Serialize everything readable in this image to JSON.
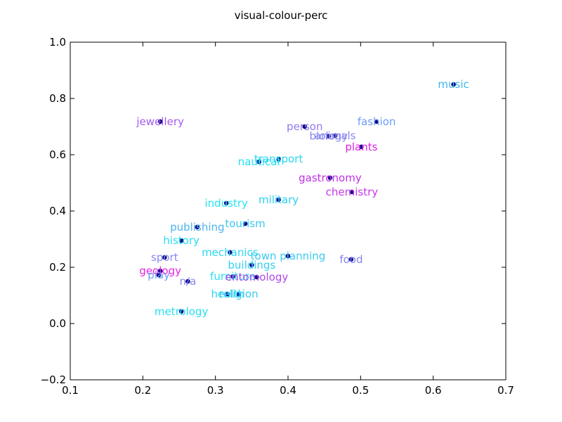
{
  "chart_data": {
    "type": "scatter",
    "title": "visual-colour-perc",
    "xlabel": "",
    "ylabel": "",
    "xlim": [
      0.1,
      0.7
    ],
    "ylim": [
      -0.2,
      1.0
    ],
    "xticks": [
      "0.1",
      "0.2",
      "0.3",
      "0.4",
      "0.5",
      "0.6",
      "0.7"
    ],
    "yticks": [
      "−0.2",
      "0.0",
      "0.2",
      "0.4",
      "0.6",
      "0.8",
      "1.0"
    ],
    "grid": false,
    "marker_color": "#0a0a8a",
    "points": [
      {
        "label": "music",
        "x": 0.628,
        "y": 0.85,
        "color": "#38b8ee"
      },
      {
        "label": "fashion",
        "x": 0.522,
        "y": 0.718,
        "color": "#6c9cf4"
      },
      {
        "label": "jewellery",
        "x": 0.224,
        "y": 0.718,
        "color": "#a35af0"
      },
      {
        "label": "person",
        "x": 0.423,
        "y": 0.7,
        "color": "#9078f0"
      },
      {
        "label": "animals",
        "x": 0.465,
        "y": 0.668,
        "color": "#8888f0"
      },
      {
        "label": "biology",
        "x": 0.456,
        "y": 0.666,
        "color": "#8a86f0"
      },
      {
        "label": "plants",
        "x": 0.501,
        "y": 0.628,
        "color": "#e020e8"
      },
      {
        "label": "transport",
        "x": 0.387,
        "y": 0.585,
        "color": "#2ad6f2"
      },
      {
        "label": "nautical",
        "x": 0.36,
        "y": 0.575,
        "color": "#22e0f2"
      },
      {
        "label": "gastronomy",
        "x": 0.458,
        "y": 0.518,
        "color": "#c030e8"
      },
      {
        "label": "chemistry",
        "x": 0.488,
        "y": 0.468,
        "color": "#c838e8"
      },
      {
        "label": "military",
        "x": 0.387,
        "y": 0.44,
        "color": "#2ad0f2"
      },
      {
        "label": "industry",
        "x": 0.315,
        "y": 0.428,
        "color": "#22e4f2"
      },
      {
        "label": "tourism",
        "x": 0.341,
        "y": 0.355,
        "color": "#3ac8ee"
      },
      {
        "label": "publishing",
        "x": 0.275,
        "y": 0.343,
        "color": "#4cb4ee"
      },
      {
        "label": "history",
        "x": 0.253,
        "y": 0.295,
        "color": "#26dcf2"
      },
      {
        "label": "mechanics",
        "x": 0.32,
        "y": 0.253,
        "color": "#2ad6f2"
      },
      {
        "label": "town planning",
        "x": 0.4,
        "y": 0.24,
        "color": "#3ccaee"
      },
      {
        "label": "sport",
        "x": 0.23,
        "y": 0.235,
        "color": "#8888f0"
      },
      {
        "label": "food",
        "x": 0.487,
        "y": 0.228,
        "color": "#8484f0"
      },
      {
        "label": "buildings",
        "x": 0.35,
        "y": 0.208,
        "color": "#32d0f0"
      },
      {
        "label": "geology",
        "x": 0.224,
        "y": 0.187,
        "color": "#e824e4"
      },
      {
        "label": "play",
        "x": 0.222,
        "y": 0.172,
        "color": "#6c9cf4"
      },
      {
        "label": "furniture",
        "x": 0.324,
        "y": 0.167,
        "color": "#2ae0f2"
      },
      {
        "label": "entomology",
        "x": 0.357,
        "y": 0.165,
        "color": "#b048e8"
      },
      {
        "label": "n/a",
        "x": 0.262,
        "y": 0.15,
        "color": "#8a86f0"
      },
      {
        "label": "health",
        "x": 0.317,
        "y": 0.105,
        "color": "#2ad6f2"
      },
      {
        "label": "religion",
        "x": 0.332,
        "y": 0.105,
        "color": "#36ccee"
      },
      {
        "label": "metrology",
        "x": 0.253,
        "y": 0.043,
        "color": "#26e0f2"
      }
    ]
  }
}
